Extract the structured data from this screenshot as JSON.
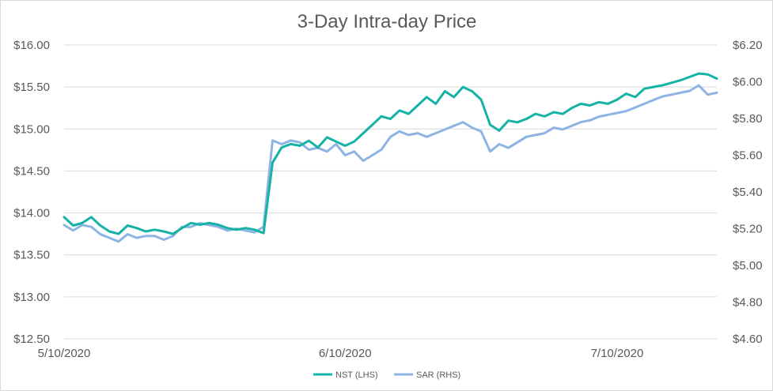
{
  "chart_data": {
    "type": "line",
    "title": "3-Day Intra-day Price",
    "x_ticks": [
      "5/10/2020",
      "6/10/2020",
      "7/10/2020"
    ],
    "y_left": {
      "ticks": [
        "$12.50",
        "$13.00",
        "$13.50",
        "$14.00",
        "$14.50",
        "$15.00",
        "$15.50",
        "$16.00"
      ],
      "ylim": [
        12.5,
        16.0
      ]
    },
    "y_right": {
      "ticks": [
        "$4.60",
        "$4.80",
        "$5.00",
        "$5.20",
        "$5.40",
        "$5.60",
        "$5.80",
        "$6.00",
        "$6.20"
      ],
      "ylim": [
        4.6,
        6.2
      ]
    },
    "grid": true,
    "legend_position": "bottom",
    "series": [
      {
        "name": "NST (LHS)",
        "axis": "left",
        "color": "#14b3a6",
        "points": [
          [
            "5/10/2020",
            13.95
          ],
          [
            "5/11/2020",
            13.85
          ],
          [
            "5/12/2020",
            13.88
          ],
          [
            "5/13/2020",
            13.95
          ],
          [
            "5/14/2020",
            13.85
          ],
          [
            "5/15/2020",
            13.78
          ],
          [
            "5/16/2020",
            13.75
          ],
          [
            "5/17/2020",
            13.85
          ],
          [
            "5/18/2020",
            13.82
          ],
          [
            "5/19/2020",
            13.78
          ],
          [
            "5/20/2020",
            13.8
          ],
          [
            "5/21/2020",
            13.78
          ],
          [
            "5/22/2020",
            13.75
          ],
          [
            "5/23/2020",
            13.82
          ],
          [
            "5/24/2020",
            13.88
          ],
          [
            "5/25/2020",
            13.86
          ],
          [
            "5/26/2020",
            13.88
          ],
          [
            "5/27/2020",
            13.86
          ],
          [
            "5/28/2020",
            13.82
          ],
          [
            "5/29/2020",
            13.8
          ],
          [
            "5/30/2020",
            13.82
          ],
          [
            "5/31/2020",
            13.8
          ],
          [
            "6/1/2020",
            13.76
          ],
          [
            "6/2/2020",
            14.6
          ],
          [
            "6/3/2020",
            14.78
          ],
          [
            "6/4/2020",
            14.82
          ],
          [
            "6/5/2020",
            14.8
          ],
          [
            "6/6/2020",
            14.86
          ],
          [
            "6/7/2020",
            14.78
          ],
          [
            "6/8/2020",
            14.9
          ],
          [
            "6/9/2020",
            14.85
          ],
          [
            "6/10/2020",
            14.8
          ],
          [
            "6/11/2020",
            14.85
          ],
          [
            "6/12/2020",
            14.95
          ],
          [
            "6/13/2020",
            15.05
          ],
          [
            "6/14/2020",
            15.15
          ],
          [
            "6/15/2020",
            15.12
          ],
          [
            "6/16/2020",
            15.22
          ],
          [
            "6/17/2020",
            15.18
          ],
          [
            "6/18/2020",
            15.28
          ],
          [
            "6/19/2020",
            15.38
          ],
          [
            "6/20/2020",
            15.3
          ],
          [
            "6/21/2020",
            15.45
          ],
          [
            "6/22/2020",
            15.38
          ],
          [
            "6/23/2020",
            15.5
          ],
          [
            "6/24/2020",
            15.45
          ],
          [
            "6/25/2020",
            15.35
          ],
          [
            "6/26/2020",
            15.05
          ],
          [
            "6/27/2020",
            14.98
          ],
          [
            "6/28/2020",
            15.1
          ],
          [
            "6/29/2020",
            15.08
          ],
          [
            "6/30/2020",
            15.12
          ],
          [
            "7/1/2020",
            15.18
          ],
          [
            "7/2/2020",
            15.15
          ],
          [
            "7/3/2020",
            15.2
          ],
          [
            "7/4/2020",
            15.18
          ],
          [
            "7/5/2020",
            15.25
          ],
          [
            "7/6/2020",
            15.3
          ],
          [
            "7/7/2020",
            15.28
          ],
          [
            "7/8/2020",
            15.32
          ],
          [
            "7/9/2020",
            15.3
          ],
          [
            "7/10/2020",
            15.35
          ],
          [
            "7/11/2020",
            15.42
          ],
          [
            "7/12/2020",
            15.38
          ],
          [
            "7/13/2020",
            15.48
          ],
          [
            "7/14/2020",
            15.5
          ],
          [
            "7/15/2020",
            15.52
          ],
          [
            "7/16/2020",
            15.55
          ],
          [
            "7/17/2020",
            15.58
          ],
          [
            "7/18/2020",
            15.62
          ],
          [
            "7/19/2020",
            15.66
          ],
          [
            "7/20/2020",
            15.65
          ],
          [
            "7/21/2020",
            15.6
          ]
        ]
      },
      {
        "name": "SAR (RHS)",
        "axis": "right",
        "color": "#8eb4e3",
        "points": [
          [
            "5/10/2020",
            5.22
          ],
          [
            "5/11/2020",
            5.19
          ],
          [
            "5/12/2020",
            5.22
          ],
          [
            "5/13/2020",
            5.21
          ],
          [
            "5/14/2020",
            5.17
          ],
          [
            "5/15/2020",
            5.15
          ],
          [
            "5/16/2020",
            5.13
          ],
          [
            "5/17/2020",
            5.17
          ],
          [
            "5/18/2020",
            5.15
          ],
          [
            "5/19/2020",
            5.16
          ],
          [
            "5/20/2020",
            5.16
          ],
          [
            "5/21/2020",
            5.14
          ],
          [
            "5/22/2020",
            5.16
          ],
          [
            "5/23/2020",
            5.21
          ],
          [
            "5/24/2020",
            5.21
          ],
          [
            "5/25/2020",
            5.23
          ],
          [
            "5/26/2020",
            5.22
          ],
          [
            "5/27/2020",
            5.21
          ],
          [
            "5/28/2020",
            5.19
          ],
          [
            "5/29/2020",
            5.2
          ],
          [
            "5/30/2020",
            5.19
          ],
          [
            "5/31/2020",
            5.18
          ],
          [
            "6/1/2020",
            5.21
          ],
          [
            "6/2/2020",
            5.68
          ],
          [
            "6/3/2020",
            5.66
          ],
          [
            "6/4/2020",
            5.68
          ],
          [
            "6/5/2020",
            5.67
          ],
          [
            "6/6/2020",
            5.63
          ],
          [
            "6/7/2020",
            5.64
          ],
          [
            "6/8/2020",
            5.62
          ],
          [
            "6/9/2020",
            5.66
          ],
          [
            "6/10/2020",
            5.6
          ],
          [
            "6/11/2020",
            5.62
          ],
          [
            "6/12/2020",
            5.57
          ],
          [
            "6/13/2020",
            5.6
          ],
          [
            "6/14/2020",
            5.63
          ],
          [
            "6/15/2020",
            5.7
          ],
          [
            "6/16/2020",
            5.73
          ],
          [
            "6/17/2020",
            5.71
          ],
          [
            "6/18/2020",
            5.72
          ],
          [
            "6/19/2020",
            5.7
          ],
          [
            "6/20/2020",
            5.72
          ],
          [
            "6/21/2020",
            5.74
          ],
          [
            "6/22/2020",
            5.76
          ],
          [
            "6/23/2020",
            5.78
          ],
          [
            "6/24/2020",
            5.75
          ],
          [
            "6/25/2020",
            5.73
          ],
          [
            "6/26/2020",
            5.62
          ],
          [
            "6/27/2020",
            5.66
          ],
          [
            "6/28/2020",
            5.64
          ],
          [
            "6/29/2020",
            5.67
          ],
          [
            "6/30/2020",
            5.7
          ],
          [
            "7/1/2020",
            5.71
          ],
          [
            "7/2/2020",
            5.72
          ],
          [
            "7/3/2020",
            5.75
          ],
          [
            "7/4/2020",
            5.74
          ],
          [
            "7/5/2020",
            5.76
          ],
          [
            "7/6/2020",
            5.78
          ],
          [
            "7/7/2020",
            5.79
          ],
          [
            "7/8/2020",
            5.81
          ],
          [
            "7/9/2020",
            5.82
          ],
          [
            "7/10/2020",
            5.83
          ],
          [
            "7/11/2020",
            5.84
          ],
          [
            "7/12/2020",
            5.86
          ],
          [
            "7/13/2020",
            5.88
          ],
          [
            "7/14/2020",
            5.9
          ],
          [
            "7/15/2020",
            5.92
          ],
          [
            "7/16/2020",
            5.93
          ],
          [
            "7/17/2020",
            5.94
          ],
          [
            "7/18/2020",
            5.95
          ],
          [
            "7/19/2020",
            5.98
          ],
          [
            "7/20/2020",
            5.93
          ],
          [
            "7/21/2020",
            5.94
          ]
        ]
      }
    ]
  }
}
